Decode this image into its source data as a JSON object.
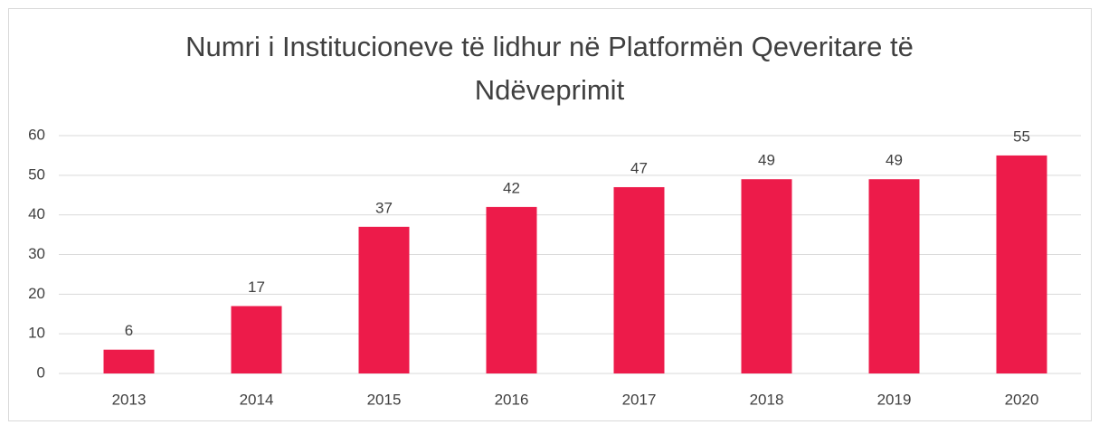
{
  "chart_data": {
    "type": "bar",
    "title": "Numri i Institucioneve të lidhur në Platformën Qeveritare të Ndëveprimit",
    "categories": [
      "2013",
      "2014",
      "2015",
      "2016",
      "2017",
      "2018",
      "2019",
      "2020"
    ],
    "values": [
      6,
      17,
      37,
      42,
      47,
      49,
      49,
      55
    ],
    "color": "#ed1b4a",
    "ylim": [
      0,
      60
    ],
    "yticks": [
      0,
      10,
      20,
      30,
      40,
      50,
      60
    ],
    "grid": true,
    "data_labels": true
  }
}
